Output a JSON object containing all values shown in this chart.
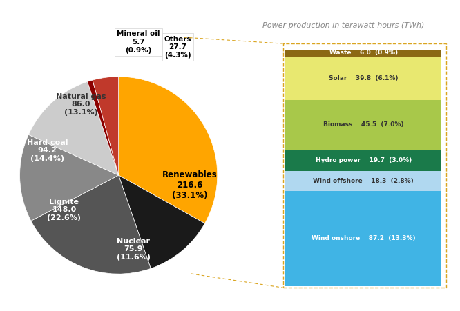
{
  "pie_labels": [
    "Renewables",
    "Nuclear",
    "Lignite",
    "Hard coal",
    "Natural gas",
    "Mineral oil",
    "Others"
  ],
  "pie_values": [
    216.6,
    75.9,
    148.0,
    94.2,
    86.0,
    5.7,
    27.7
  ],
  "pie_percentages": [
    "33.1%",
    "11.6%",
    "22.6%",
    "14.4%",
    "13.1%",
    "0.9%",
    "4.3%"
  ],
  "pie_colors": [
    "#FFA500",
    "#1a1a1a",
    "#555555",
    "#888888",
    "#cccccc",
    "#8B0000",
    "#c0392b"
  ],
  "pie_startangle": 90,
  "bar_labels": [
    "Wind onshore",
    "Wind offshore",
    "Hydro power",
    "Biomass",
    "Solar",
    "Waste"
  ],
  "bar_values": [
    87.2,
    18.3,
    19.7,
    45.5,
    39.8,
    6.0
  ],
  "bar_percentages": [
    "13.3%",
    "2.8%",
    "3.0%",
    "7.0%",
    "6.1%",
    "0.9%"
  ],
  "bar_colors": [
    "#40B4E5",
    "#B0D8F0",
    "#1A7A4A",
    "#A8C84A",
    "#E8E870",
    "#8B6914"
  ],
  "title": "Power production in terawatt-hours (TWh)",
  "title_color": "#888888",
  "bg_color": "#ffffff",
  "connector_color": "#DAA520",
  "renewables_idx": 0
}
